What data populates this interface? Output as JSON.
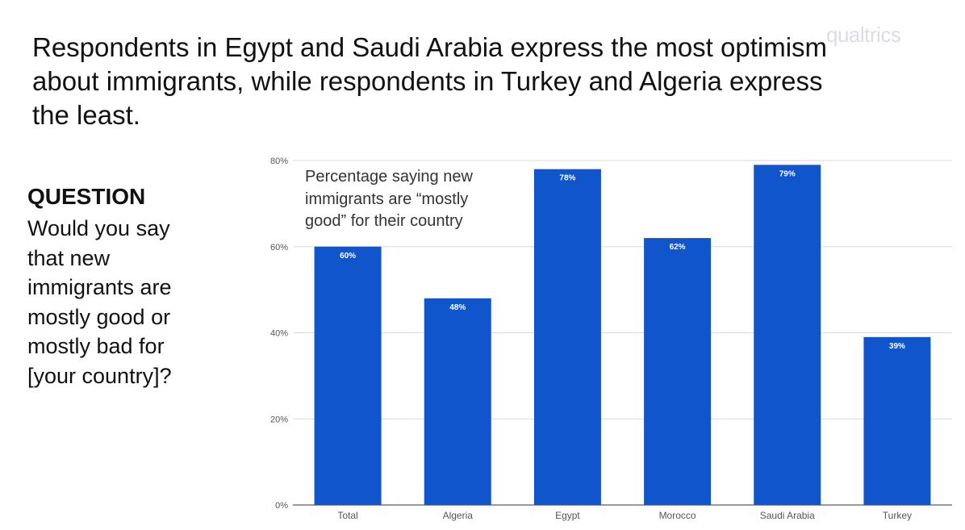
{
  "watermark": "qualtrics",
  "headline": "Respondents in Egypt and Saudi Arabia express the most optimism\nabout immigrants, while respondents in Turkey and Algeria express\nthe least.",
  "question": {
    "heading": "QUESTION",
    "text": "Would you say\nthat new\nimmigrants are\nmostly good or\nmostly bad for\n[your country]?"
  },
  "colors": {
    "bar": "#1155cc",
    "grid": "#d9d9d9",
    "axis": "#555555"
  },
  "chart_data": {
    "type": "bar",
    "title": "Percentage saying new\nimmigrants are “mostly\ngood” for their country",
    "categories": [
      "Total",
      "Algeria",
      "Egypt",
      "Morocco",
      "Saudi Arabia",
      "Turkey"
    ],
    "values": [
      60,
      48,
      78,
      62,
      79,
      39
    ],
    "data_labels": [
      "60%",
      "48%",
      "78%",
      "62%",
      "79%",
      "39%"
    ],
    "ylim": [
      0,
      80
    ],
    "yticks": [
      0,
      20,
      40,
      60,
      80
    ],
    "ytick_labels": [
      "0%",
      "20%",
      "40%",
      "60%",
      "80%"
    ],
    "grid": true,
    "legend": "none"
  }
}
